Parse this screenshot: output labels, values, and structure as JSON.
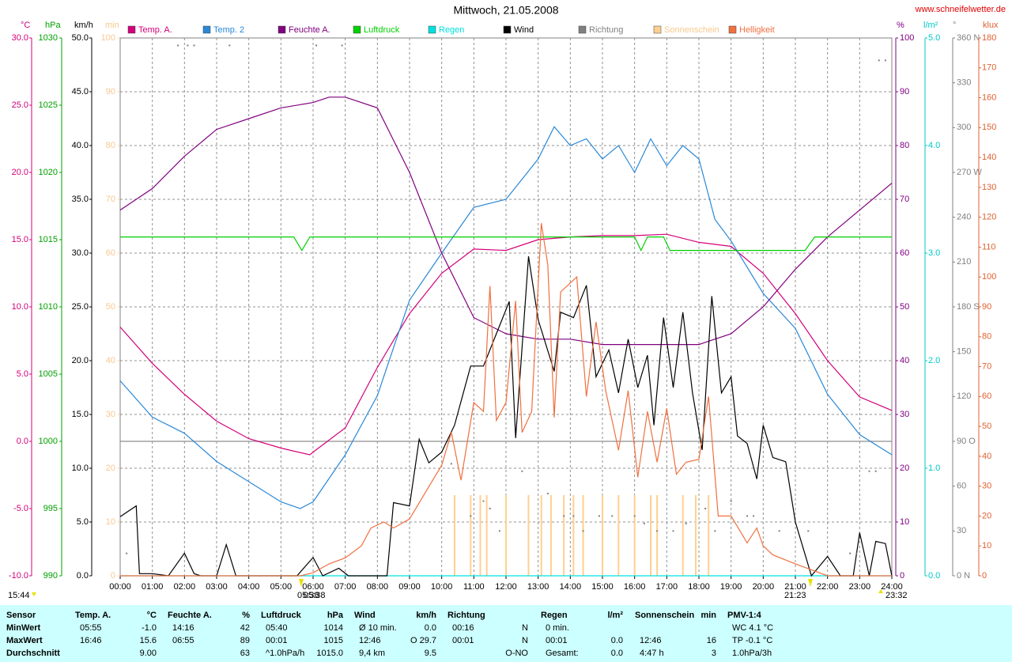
{
  "chart_data": {
    "type": "line",
    "title": "Mittwoch, 21.05.2008",
    "website": "www.schneifelwetter.de",
    "xlim": [
      0,
      24
    ],
    "xticks": [
      {
        "value": 0,
        "label": "00:00"
      },
      {
        "value": 1,
        "label": "01:00"
      },
      {
        "value": 2,
        "label": "02:00"
      },
      {
        "value": 3,
        "label": "03:00"
      },
      {
        "value": 4,
        "label": "04:00"
      },
      {
        "value": 5,
        "label": "05:00"
      },
      {
        "value": 6,
        "label": "06:00"
      },
      {
        "value": 7,
        "label": "07:00"
      },
      {
        "value": 8,
        "label": "08:00"
      },
      {
        "value": 9,
        "label": "09:00"
      },
      {
        "value": 10,
        "label": "10:00"
      },
      {
        "value": 11,
        "label": "11:00"
      },
      {
        "value": 12,
        "label": "12:00"
      },
      {
        "value": 13,
        "label": "13:00"
      },
      {
        "value": 14,
        "label": "14:00"
      },
      {
        "value": 15,
        "label": "15:00"
      },
      {
        "value": 16,
        "label": "16:00"
      },
      {
        "value": 17,
        "label": "17:00"
      },
      {
        "value": 18,
        "label": "18:00"
      },
      {
        "value": 19,
        "label": "19:00"
      },
      {
        "value": 20,
        "label": "20:00"
      },
      {
        "value": 21,
        "label": "21:00"
      },
      {
        "value": 22,
        "label": "22:00"
      },
      {
        "value": 23,
        "label": "23:00"
      },
      {
        "value": 24,
        "label": "24:00"
      }
    ],
    "grid": true,
    "axes": {
      "temp": {
        "label": "°C",
        "color": "#d4007a",
        "lim": [
          -10,
          30
        ],
        "ticks": [
          {
            "value": -10,
            "label": "-10.0"
          },
          {
            "value": -5,
            "label": "-5.0"
          },
          {
            "value": 0,
            "label": "0.0"
          },
          {
            "value": 5,
            "label": "5.0"
          },
          {
            "value": 10,
            "label": "10.0"
          },
          {
            "value": 15,
            "label": "15.0"
          },
          {
            "value": 20,
            "label": "20.0"
          },
          {
            "value": 25,
            "label": "25.0"
          },
          {
            "value": 30,
            "label": "30.0"
          }
        ]
      },
      "press": {
        "label": "hPa",
        "color": "#00a000",
        "lim": [
          990,
          1030
        ],
        "ticks": [
          990,
          995,
          1000,
          1005,
          1010,
          1015,
          1020,
          1025,
          1030
        ]
      },
      "wind": {
        "label": "km/h",
        "color": "#000000",
        "lim": [
          0,
          50
        ],
        "ticks": [
          {
            "value": 0,
            "label": "0.0"
          },
          {
            "value": 5,
            "label": "5.0"
          },
          {
            "value": 10,
            "label": "10.0"
          },
          {
            "value": 15,
            "label": "15.0"
          },
          {
            "value": 20,
            "label": "20.0"
          },
          {
            "value": 25,
            "label": "25.0"
          },
          {
            "value": 30,
            "label": "30.0"
          },
          {
            "value": 35,
            "label": "35.0"
          },
          {
            "value": 40,
            "label": "40.0"
          },
          {
            "value": 45,
            "label": "45.0"
          },
          {
            "value": 50,
            "label": "50.0"
          }
        ]
      },
      "sun": {
        "label": "min",
        "color": "#f8c890",
        "lim": [
          0,
          100
        ],
        "ticks": [
          0,
          10,
          20,
          30,
          40,
          50,
          60,
          70,
          80,
          90,
          100
        ]
      },
      "hum": {
        "label": "%",
        "color": "#800080",
        "lim": [
          0,
          100
        ],
        "ticks": [
          0,
          10,
          20,
          30,
          40,
          50,
          60,
          70,
          80,
          90,
          100
        ]
      },
      "rain": {
        "label": "l/m²",
        "color": "#00c8c8",
        "lim": [
          0,
          5
        ],
        "ticks": [
          {
            "value": 0,
            "label": "0.0"
          },
          {
            "value": 1,
            "label": "1.0"
          },
          {
            "value": 2,
            "label": "2.0"
          },
          {
            "value": 3,
            "label": "3.0"
          },
          {
            "value": 4,
            "label": "4.0"
          },
          {
            "value": 5,
            "label": "5.0"
          }
        ]
      },
      "dir": {
        "label": "°",
        "color": "#808080",
        "lim": [
          0,
          360
        ],
        "ticks": [
          {
            "value": 0,
            "label": "0 N"
          },
          30,
          60,
          {
            "value": 90,
            "label": "90 O"
          },
          120,
          150,
          {
            "value": 180,
            "label": "180 S"
          },
          210,
          240,
          {
            "value": 270,
            "label": "270 W"
          },
          300,
          330,
          {
            "value": 360,
            "label": "360 N"
          }
        ]
      },
      "lux": {
        "label": "klux",
        "color": "#e06030",
        "lim": [
          0,
          180
        ],
        "ticks": [
          0,
          10,
          20,
          30,
          40,
          50,
          60,
          70,
          80,
          90,
          100,
          110,
          120,
          130,
          140,
          150,
          160,
          170,
          180
        ]
      }
    },
    "series": [
      {
        "name": "Temp. A.",
        "color": "#d4007a",
        "axis": "temp",
        "style": "line",
        "x": [
          0,
          1,
          2,
          3,
          4,
          5,
          5.9,
          6,
          7,
          8,
          9,
          10,
          11,
          12,
          13,
          14,
          15,
          16,
          17,
          18,
          19,
          20,
          21,
          22,
          23,
          24
        ],
        "values": [
          8.5,
          5.8,
          3.5,
          1.5,
          0.2,
          -0.5,
          -1.0,
          -0.8,
          1.0,
          5.5,
          9.5,
          12.5,
          14.3,
          14.2,
          15.0,
          15.2,
          15.3,
          15.3,
          15.4,
          14.8,
          14.5,
          12.5,
          9.5,
          6.0,
          3.3,
          2.3
        ]
      },
      {
        "name": "Temp. 2",
        "color": "#2a88d8",
        "axis": "temp",
        "style": "line",
        "x": [
          0,
          1,
          2,
          3,
          4,
          5,
          5.6,
          6,
          7,
          8,
          9,
          10,
          11,
          12,
          13,
          13.5,
          14,
          14.5,
          15,
          15.5,
          16,
          16.5,
          17,
          17.5,
          18,
          18.5,
          19,
          20,
          21,
          22,
          23,
          24
        ],
        "values": [
          4.5,
          1.8,
          0.6,
          -1.5,
          -3.0,
          -4.5,
          -5.0,
          -4.5,
          -1.0,
          3.4,
          10.5,
          14.0,
          17.4,
          18.0,
          21.0,
          23.4,
          22.0,
          22.5,
          21.0,
          22.0,
          20.0,
          22.5,
          20.5,
          22.0,
          21.0,
          16.5,
          14.9,
          11.0,
          8.4,
          3.5,
          0.5,
          -1.0
        ]
      },
      {
        "name": "Feuchte A.",
        "color": "#800080",
        "axis": "hum",
        "style": "line",
        "x": [
          0,
          1,
          2,
          3,
          4,
          5,
          6,
          6.5,
          7,
          8,
          9,
          10,
          11,
          12,
          13,
          14,
          15,
          16,
          17,
          18,
          19,
          20,
          21,
          22,
          23,
          24
        ],
        "values": [
          68,
          72,
          78,
          83,
          85,
          87,
          88,
          89,
          89,
          87,
          75,
          60,
          48,
          45,
          44,
          44,
          43,
          43,
          43,
          43,
          45,
          50,
          57,
          63,
          68,
          73
        ]
      },
      {
        "name": "Luftdruck",
        "color": "#00d000",
        "axis": "press",
        "style": "line",
        "x": [
          0,
          5.4,
          5.65,
          5.9,
          16,
          16.2,
          16.4,
          16.9,
          17.1,
          21.3,
          21.6,
          24
        ],
        "values": [
          1015.2,
          1015.2,
          1014.2,
          1015.2,
          1015.2,
          1014.2,
          1015.2,
          1015.2,
          1014.2,
          1014.2,
          1015.2,
          1015.2
        ]
      },
      {
        "name": "Regen",
        "color": "#00e0e0",
        "axis": "rain",
        "style": "line",
        "x": [
          0,
          24
        ],
        "values": [
          0,
          0
        ]
      },
      {
        "name": "Wind",
        "color": "#000000",
        "axis": "wind",
        "style": "line",
        "x": [
          0,
          0.5,
          0.6,
          1,
          1.5,
          2,
          2.3,
          2.5,
          3,
          3.3,
          3.6,
          5.5,
          6,
          6.3,
          6.8,
          7.1,
          8.3,
          8.5,
          9,
          9.3,
          9.6,
          10,
          10.4,
          10.9,
          11.3,
          11.7,
          12.1,
          12.3,
          12.7,
          13,
          13.5,
          13.7,
          14.1,
          14.5,
          14.8,
          15.2,
          15.5,
          15.8,
          16.1,
          16.4,
          16.6,
          16.9,
          17.2,
          17.5,
          17.8,
          18.1,
          18.4,
          18.7,
          19,
          19.2,
          19.5,
          19.8,
          20,
          20.3,
          20.7,
          21,
          21.5,
          22,
          22.4,
          22.8,
          23,
          23.3,
          23.5,
          23.8,
          24
        ],
        "values": [
          5.5,
          6.5,
          0.2,
          0.2,
          0,
          2.1,
          0.2,
          0,
          0,
          2.9,
          0,
          0,
          1.7,
          0,
          0.7,
          0,
          0,
          6.8,
          6.5,
          12.7,
          10.5,
          11.5,
          14,
          19.5,
          19.5,
          22.5,
          25.5,
          12.8,
          29.7,
          23.8,
          19,
          24.5,
          24,
          27,
          18.5,
          21,
          17,
          22,
          17.5,
          20.5,
          14,
          24,
          17.5,
          24.5,
          17,
          11.7,
          26,
          17,
          18.5,
          13,
          12.3,
          9,
          14,
          11,
          10.6,
          5,
          0,
          1.8,
          0,
          0,
          4,
          0,
          3.2,
          3,
          0
        ]
      },
      {
        "name": "Richtung",
        "color": "#808080",
        "axis": "dir",
        "style": "dots",
        "x": [
          0.2,
          1.8,
          2.1,
          2.3,
          3.4,
          6.1,
          6.9,
          10.3,
          10.9,
          11.3,
          11.5,
          11.8,
          12.5,
          13.3,
          13.8,
          14.1,
          14.4,
          14.9,
          15.3,
          16,
          16.3,
          16.7,
          17.2,
          17.6,
          18.2,
          18.5,
          19,
          19.5,
          19.7,
          20.5,
          21.4,
          22.7,
          22.9,
          23.3,
          23.5,
          23.6,
          23.8
        ],
        "values": [
          15,
          355,
          355,
          355,
          355,
          355,
          355,
          75,
          40,
          50,
          45,
          30,
          70,
          55,
          40,
          40,
          30,
          40,
          40,
          40,
          35,
          30,
          30,
          35,
          45,
          30,
          50,
          40,
          40,
          30,
          30,
          15,
          15,
          70,
          70,
          345,
          345
        ]
      },
      {
        "name": "Sonnenschein",
        "color": "#ffd090",
        "axis": "sun",
        "style": "bars",
        "x": [
          10.4,
          10.9,
          11.2,
          11.4,
          12,
          12.7,
          13.1,
          13.4,
          13.8,
          14.1,
          14.4,
          15,
          15.5,
          16,
          16.5,
          16.7,
          17.5,
          17.9,
          18.3
        ],
        "values": [
          15,
          15,
          15,
          15,
          15,
          15,
          15,
          15,
          15,
          15,
          15,
          15,
          15,
          15,
          15,
          15,
          15,
          15,
          15
        ]
      },
      {
        "name": "Helligkeit",
        "color": "#f07040",
        "axis": "lux",
        "style": "line",
        "x": [
          0,
          5.6,
          6,
          6.5,
          7,
          7.5,
          7.8,
          8.2,
          8.5,
          9,
          9.5,
          10,
          10.3,
          10.6,
          11,
          11.3,
          11.5,
          11.7,
          12,
          12.3,
          12.5,
          12.8,
          13.1,
          13.3,
          13.5,
          13.7,
          14.2,
          14.5,
          14.8,
          15.1,
          15.5,
          15.8,
          16.1,
          16.4,
          16.7,
          17,
          17.3,
          17.6,
          18,
          18.3,
          18.6,
          19,
          19.5,
          19.8,
          20,
          20.3,
          21,
          22,
          24
        ],
        "values": [
          0,
          0,
          1,
          4,
          6,
          10,
          16,
          18,
          16,
          19,
          28,
          37,
          48,
          32,
          58,
          55,
          97,
          52,
          58,
          92,
          48,
          55,
          118,
          104,
          53,
          95,
          100,
          60,
          85,
          62,
          42,
          62,
          33,
          55,
          38,
          56,
          34,
          38,
          39,
          60,
          20,
          20,
          11,
          16,
          10,
          7,
          4,
          0,
          0
        ]
      }
    ],
    "annotations": [
      "15:44",
      "05:38",
      "05:38",
      "21:23",
      "23:32"
    ]
  },
  "table": {
    "rows": [
      {
        "label": "Sensor",
        "cells": [
          {
            "l": "Temp. A.",
            "r": "°C"
          },
          {
            "l": "Feuchte A.",
            "r": "%"
          },
          {
            "l": "Luftdruck",
            "r": "hPa"
          },
          {
            "l": "Wind",
            "r": "km/h"
          },
          {
            "l": "Richtung"
          },
          {
            "l": "Regen",
            "r": "l/m²"
          },
          {
            "l": "Sonnenschein",
            "r": "min"
          },
          {
            "l": "PMV-1:4"
          }
        ]
      },
      {
        "label": "MinWert",
        "cells": [
          {
            "l": "05:55",
            "r": "-1.0"
          },
          {
            "l": "14:16",
            "r": "42"
          },
          {
            "l": "05:40",
            "r": "1014"
          },
          {
            "l": "Ø 10 min.",
            "r": "0.0"
          },
          {
            "l": "00:16",
            "r": "N"
          },
          {
            "l": "0 min."
          },
          null,
          {
            "l": "WC 4.1 °C"
          }
        ]
      },
      {
        "label": "MaxWert",
        "cells": [
          {
            "l": "16:46",
            "r": "15.6"
          },
          {
            "l": "06:55",
            "r": "89"
          },
          {
            "l": "00:01",
            "r": "1015"
          },
          {
            "l": "12:46",
            "r": "O 29.7"
          },
          {
            "l": "00:01",
            "r": "N"
          },
          {
            "l": "00:01",
            "r": "0.0"
          },
          {
            "l": "12:46",
            "r": "16"
          },
          {
            "l": "TP -0.1 °C"
          }
        ]
      },
      {
        "label": "Durchschnitt",
        "cells": [
          {
            "r": "9.00"
          },
          {
            "r": "63"
          },
          {
            "l": "^1.0hPa/h",
            "r": "1015.0"
          },
          {
            "l": "9,4 km",
            "r": "9.5"
          },
          {
            "r": "O-NO"
          },
          {
            "l": "Gesamt:",
            "r": "0.0"
          },
          {
            "l": "4:47 h",
            "r": "3"
          },
          {
            "l": "1.0hPa/3h"
          }
        ]
      }
    ]
  }
}
